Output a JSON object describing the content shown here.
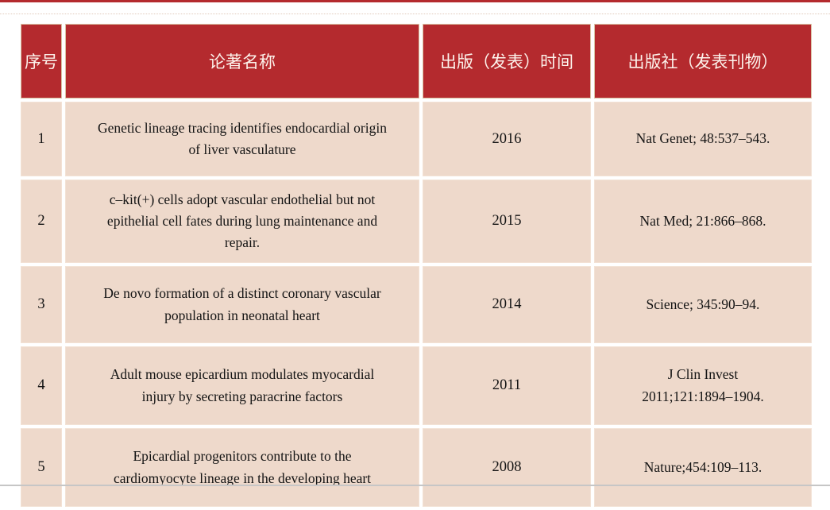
{
  "colors": {
    "header_bg": "#b42a2e",
    "header_text": "#fdf3ec",
    "row_bg": "#eed9cb",
    "body_text": "#141414",
    "top_rule": "#b42a2e",
    "bottom_rule": "#c6c6c6"
  },
  "table": {
    "headers": [
      "序号",
      "论著名称",
      "出版（发表）时间",
      "出版社（发表刊物）"
    ],
    "rows": [
      {
        "no": "1",
        "title": "Genetic lineage tracing identifies endocardial origin\nof liver vasculature",
        "year": "2016",
        "journal": "Nat Genet; 48:537–543."
      },
      {
        "no": "2",
        "title": "c–kit(+) cells adopt vascular endothelial but not\nepithelial cell fates during lung maintenance and\nrepair.",
        "year": "2015",
        "journal": "Nat Med; 21:866–868."
      },
      {
        "no": "3",
        "title": "De novo formation of a distinct coronary vascular\npopulation in neonatal heart",
        "year": "2014",
        "journal": "Science; 345:90–94."
      },
      {
        "no": "4",
        "title": "Adult mouse epicardium modulates myocardial\ninjury by secreting paracrine factors",
        "year": "2011",
        "journal": "J Clin Invest\n2011;121:1894–1904."
      },
      {
        "no": "5",
        "title": "Epicardial progenitors contribute to the\ncardiomyocyte lineage in the developing heart",
        "year": "2008",
        "journal": "Nature;454:109–113."
      }
    ]
  }
}
